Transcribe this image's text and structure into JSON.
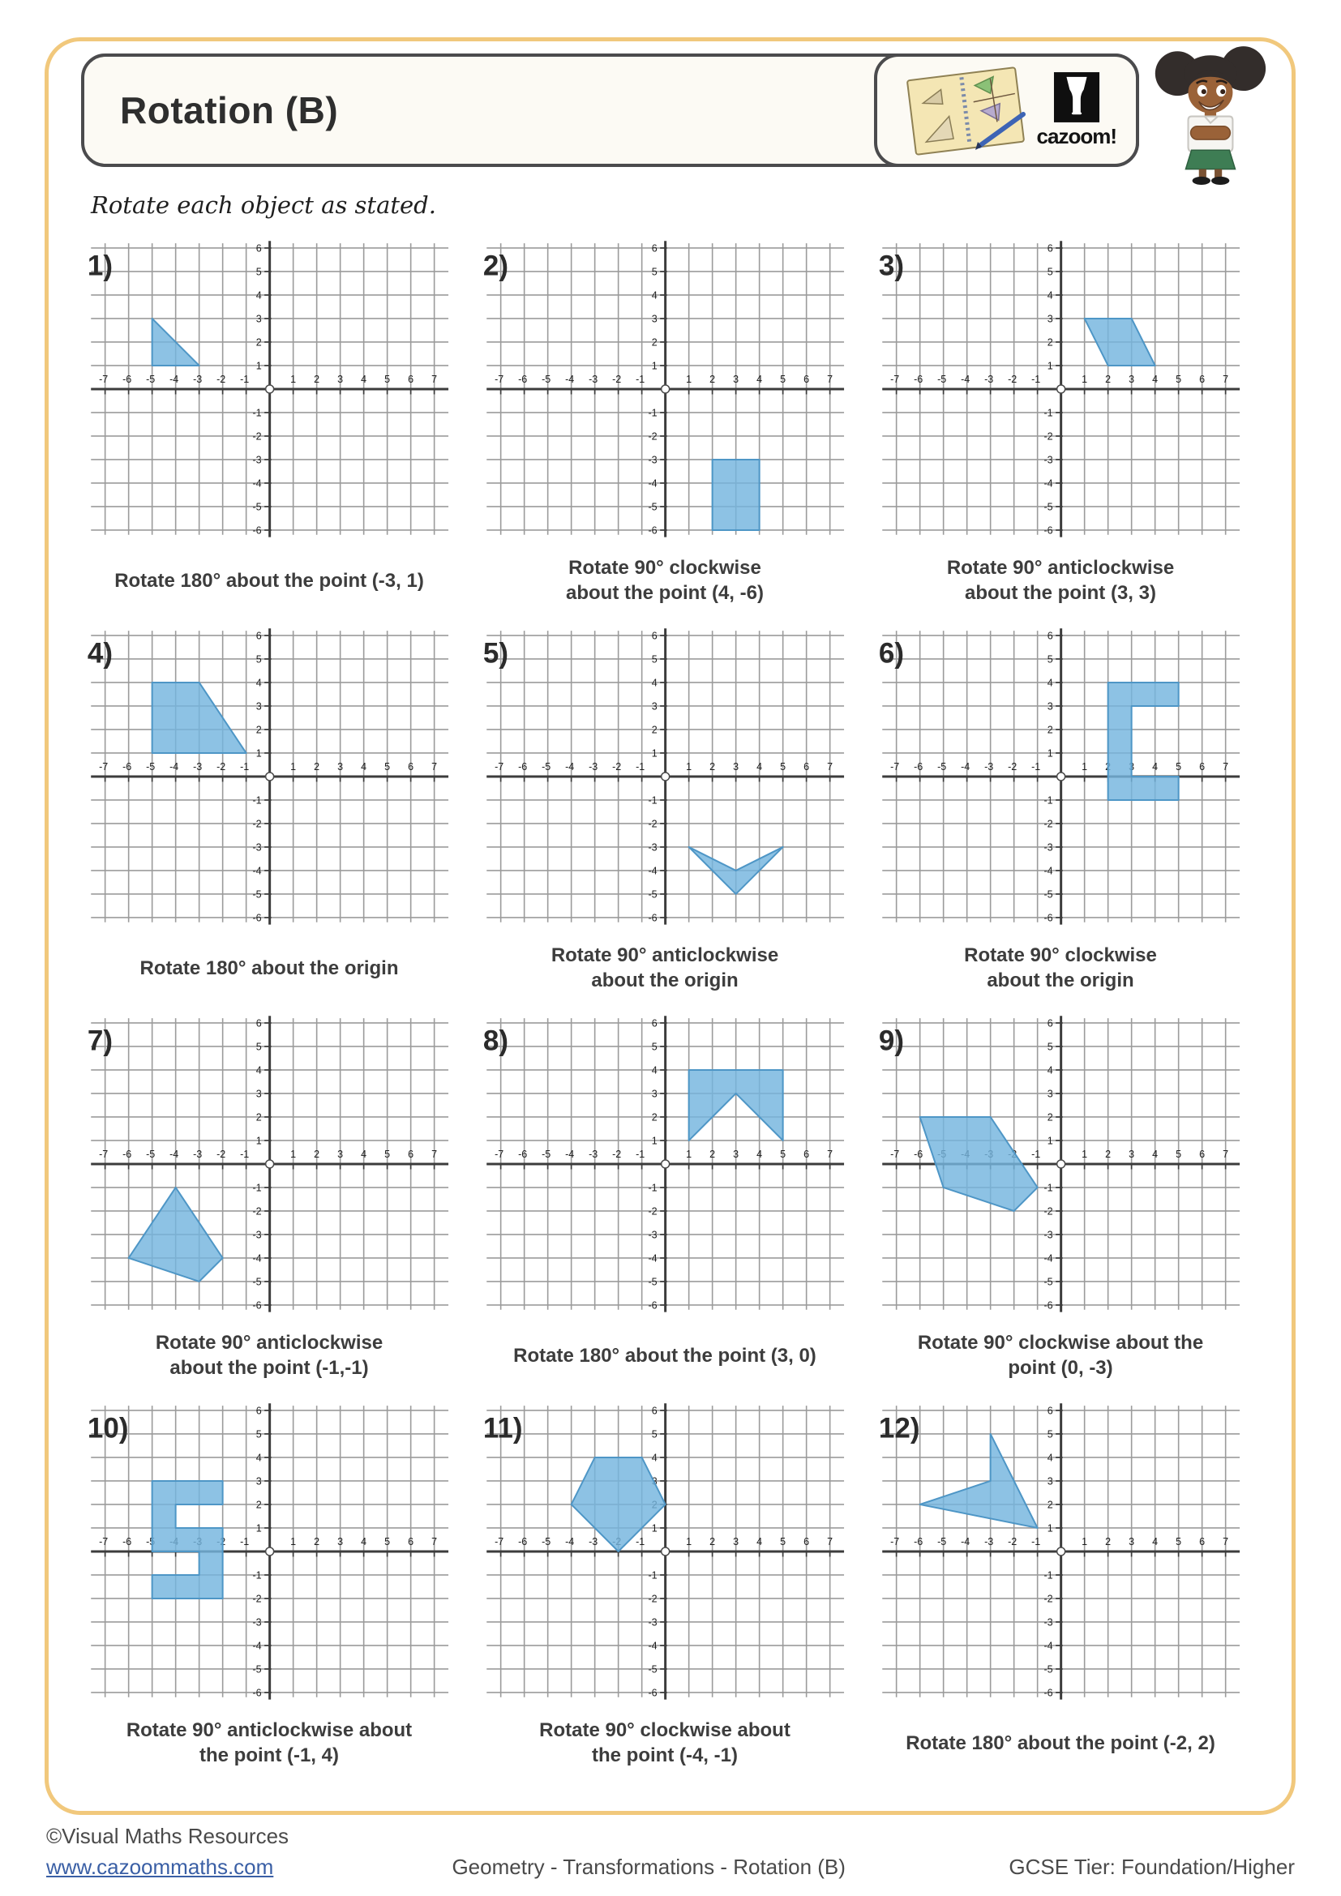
{
  "page": {
    "title": "Rotation (B)",
    "instruction": "Rotate each object as stated.",
    "logo_text": "cazoom!",
    "footer": {
      "copyright": "©Visual Maths Resources",
      "website": "www.cazoommaths.com",
      "center": "Geometry - Transformations - Rotation (B)",
      "right": "GCSE Tier: Foundation/Higher"
    }
  },
  "grid": {
    "xmin": -7,
    "xmax": 7,
    "ymin": -6,
    "ymax": 6,
    "x_tick_labels": [
      -7,
      -6,
      -5,
      -4,
      -3,
      -2,
      -1,
      1,
      2,
      3,
      4,
      5,
      6,
      7
    ],
    "y_tick_labels": [
      6,
      5,
      4,
      3,
      2,
      1,
      -1,
      -2,
      -3,
      -4,
      -5,
      -6
    ]
  },
  "colors": {
    "shape_fill": "#74B5DE",
    "shape_stroke": "#4E96C6",
    "grid_line": "#9B9B9B",
    "axis": "#3C3C3C",
    "tick_label": "#1E1E1E",
    "page_border": "#F1C87C",
    "box_border": "#4B4B4D",
    "link_blue": "#3A5FA5"
  },
  "problems": [
    {
      "number": "1)",
      "caption_lines": [
        "Rotate 180° about the point (-3, 1)"
      ],
      "shape_points": [
        [
          -5,
          3
        ],
        [
          -5,
          1
        ],
        [
          -3,
          1
        ]
      ]
    },
    {
      "number": "2)",
      "caption_lines": [
        "Rotate 90° clockwise",
        "about the point (4, -6)"
      ],
      "shape_points": [
        [
          2,
          -3
        ],
        [
          4,
          -3
        ],
        [
          4,
          -6
        ],
        [
          2,
          -6
        ]
      ]
    },
    {
      "number": "3)",
      "caption_lines": [
        "Rotate 90° anticlockwise",
        "about the point (3, 3)"
      ],
      "shape_points": [
        [
          1,
          3
        ],
        [
          3,
          3
        ],
        [
          4,
          1
        ],
        [
          2,
          1
        ]
      ]
    },
    {
      "number": "4)",
      "caption_lines": [
        "Rotate 180° about the origin"
      ],
      "shape_points": [
        [
          -5,
          4
        ],
        [
          -3,
          4
        ],
        [
          -1,
          1
        ],
        [
          -5,
          1
        ]
      ]
    },
    {
      "number": "5)",
      "caption_lines": [
        "Rotate 90° anticlockwise",
        "about the origin"
      ],
      "shape_points": [
        [
          1,
          -3
        ],
        [
          3,
          -4
        ],
        [
          5,
          -3
        ],
        [
          3,
          -5
        ]
      ]
    },
    {
      "number": "6)",
      "caption_lines": [
        "Rotate 90° clockwise",
        "about the origin"
      ],
      "shape_points": [
        [
          2,
          4
        ],
        [
          5,
          4
        ],
        [
          5,
          3
        ],
        [
          3,
          3
        ],
        [
          3,
          0
        ],
        [
          5,
          0
        ],
        [
          5,
          -1
        ],
        [
          2,
          -1
        ]
      ]
    },
    {
      "number": "7)",
      "caption_lines": [
        "Rotate 90° anticlockwise",
        "about the point (-1,-1)"
      ],
      "shape_points": [
        [
          -4,
          -1
        ],
        [
          -2,
          -4
        ],
        [
          -3,
          -5
        ],
        [
          -6,
          -4
        ]
      ]
    },
    {
      "number": "8)",
      "caption_lines": [
        "Rotate 180° about the point (3, 0)"
      ],
      "shape_points": [
        [
          1,
          4
        ],
        [
          5,
          4
        ],
        [
          5,
          1
        ],
        [
          3,
          3
        ],
        [
          1,
          1
        ]
      ]
    },
    {
      "number": "9)",
      "caption_lines": [
        "Rotate 90° clockwise about the",
        "point (0, -3)"
      ],
      "shape_points": [
        [
          -6,
          2
        ],
        [
          -3,
          2
        ],
        [
          -1,
          -1
        ],
        [
          -2,
          -2
        ],
        [
          -5,
          -1
        ]
      ]
    },
    {
      "number": "10)",
      "caption_lines": [
        "Rotate 90° anticlockwise about",
        "the point (-1, 4)"
      ],
      "shape_points": [
        [
          -5,
          3
        ],
        [
          -2,
          3
        ],
        [
          -2,
          2
        ],
        [
          -4,
          2
        ],
        [
          -4,
          1
        ],
        [
          -2,
          1
        ],
        [
          -2,
          -2
        ],
        [
          -5,
          -2
        ],
        [
          -5,
          -1
        ],
        [
          -3,
          -1
        ],
        [
          -3,
          0
        ],
        [
          -5,
          0
        ]
      ]
    },
    {
      "number": "11)",
      "caption_lines": [
        "Rotate 90° clockwise about",
        "the point (-4, -1)"
      ],
      "shape_points": [
        [
          -3,
          4
        ],
        [
          -1,
          4
        ],
        [
          0,
          2
        ],
        [
          -2,
          0
        ],
        [
          -4,
          2
        ]
      ]
    },
    {
      "number": "12)",
      "caption_lines": [
        "Rotate 180° about the point (-2, 2)"
      ],
      "shape_points": [
        [
          -3,
          5
        ],
        [
          -1,
          1
        ],
        [
          -6,
          2
        ],
        [
          -3,
          3
        ]
      ]
    }
  ]
}
